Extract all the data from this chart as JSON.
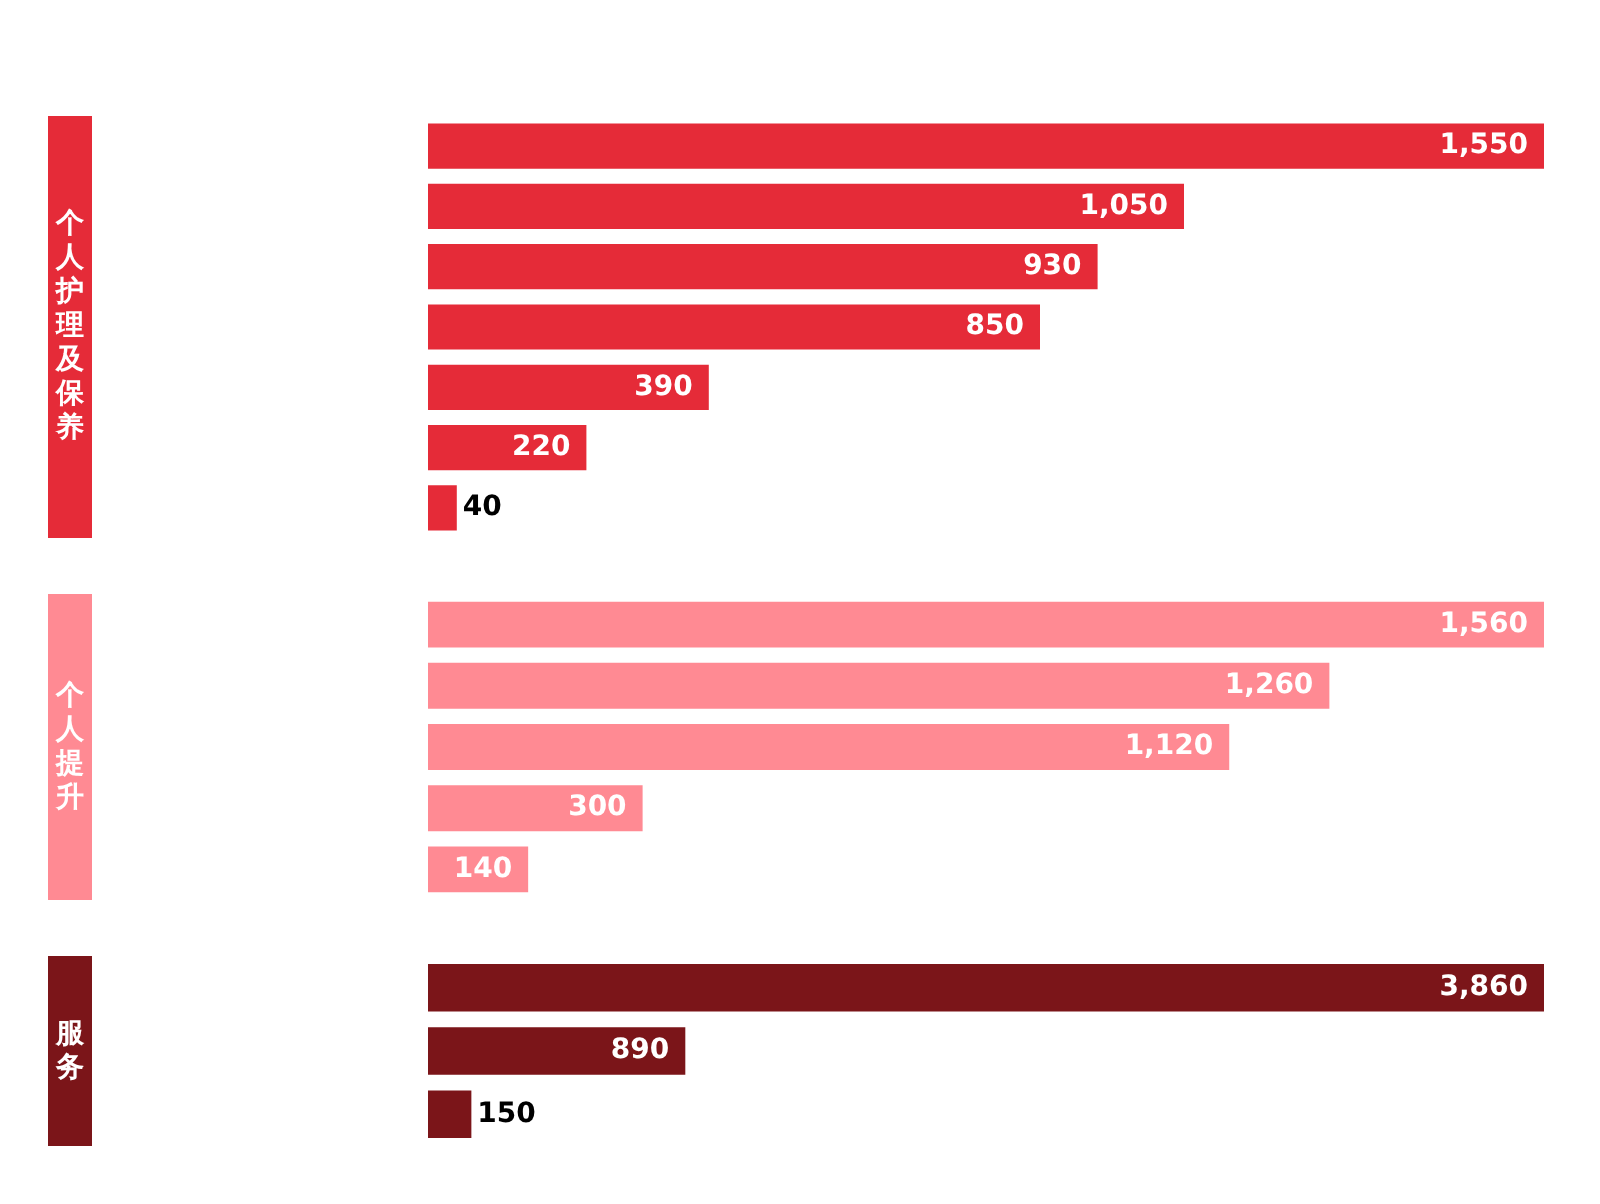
{
  "chart_data": [
    {
      "type": "bar",
      "orientation": "horizontal",
      "ylabel": "个人护理及保养",
      "categories": [
        null,
        null,
        null,
        null,
        null,
        null,
        null
      ],
      "values": [
        1550,
        1050,
        930,
        850,
        390,
        220,
        40
      ],
      "value_labels": [
        "1,550",
        "1,050",
        "930",
        "850",
        "390",
        "220",
        "40"
      ],
      "color": "#e52b38"
    },
    {
      "type": "bar",
      "orientation": "horizontal",
      "ylabel": "个人提升",
      "categories": [
        null,
        null,
        null,
        null,
        null
      ],
      "values": [
        1560,
        1260,
        1120,
        300,
        140
      ],
      "value_labels": [
        "1,560",
        "1,260",
        "1,120",
        "300",
        "140"
      ],
      "color": "#ff8a93"
    },
    {
      "type": "bar",
      "orientation": "horizontal",
      "ylabel": "服务",
      "categories": [
        null,
        null,
        null
      ],
      "values": [
        3860,
        890,
        150
      ],
      "value_labels": [
        "3,860",
        "890",
        "150"
      ],
      "color": "#7b1519"
    }
  ]
}
